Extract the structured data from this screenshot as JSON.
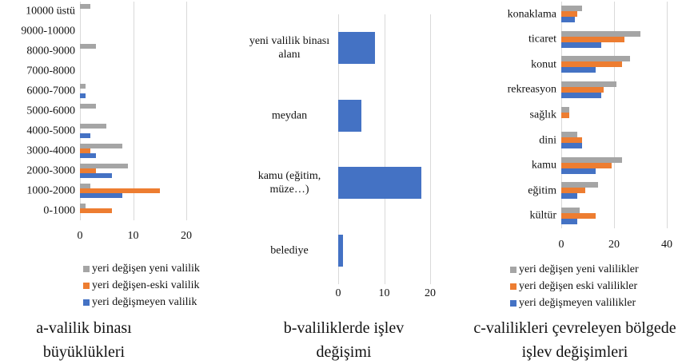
{
  "chart_data": [
    {
      "type": "bar",
      "orientation": "horizontal",
      "caption": "a-valilik binası büyüklükleri",
      "categories": [
        "10000 üstü",
        "9000-10000",
        "8000-9000",
        "7000-8000",
        "6000-7000",
        "5000-6000",
        "4000-5000",
        "3000-4000",
        "2000-3000",
        "1000-2000",
        "0-1000"
      ],
      "series": [
        {
          "name": "yeri değişen yeni valilik",
          "color": "#a5a5a5",
          "values": [
            2,
            0,
            3,
            0,
            1,
            3,
            5,
            8,
            9,
            2,
            1
          ]
        },
        {
          "name": "yeri değişen-eski valilik",
          "color": "#ed7d31",
          "values": [
            0,
            0,
            0,
            0,
            0,
            0,
            0,
            2,
            3,
            15,
            6
          ]
        },
        {
          "name": "yeri değişmeyen valilik",
          "color": "#4472c4",
          "values": [
            0,
            0,
            0,
            0,
            1,
            0,
            2,
            3,
            6,
            8,
            0
          ]
        }
      ],
      "xlim": [
        0,
        20
      ],
      "xticks": [
        0,
        10,
        20
      ],
      "grid": true
    },
    {
      "type": "bar",
      "orientation": "horizontal",
      "caption": "b-valiliklerde işlev değişimi",
      "categories": [
        "yeni valilik binası alanı",
        "meydan",
        "kamu (eğitim, müze…)",
        "belediye"
      ],
      "values": [
        8,
        5,
        18,
        1
      ],
      "color": "#4472c4",
      "xlim": [
        0,
        20
      ],
      "xticks": [
        0,
        10,
        20
      ],
      "grid": true
    },
    {
      "type": "bar",
      "orientation": "horizontal",
      "caption": "c-valilikleri çevreleyen bölgede işlev değişimleri",
      "categories": [
        "konaklama",
        "ticaret",
        "konut",
        "rekreasyon",
        "sağlık",
        "dini",
        "kamu",
        "eğitim",
        "kültür"
      ],
      "series": [
        {
          "name": "yeri değişen yeni valilikler",
          "color": "#a5a5a5",
          "values": [
            8,
            30,
            26,
            21,
            3,
            6,
            23,
            14,
            7
          ]
        },
        {
          "name": "yeri değişen eski valilikler",
          "color": "#ed7d31",
          "values": [
            6,
            24,
            23,
            16,
            3,
            8,
            19,
            9,
            13
          ]
        },
        {
          "name": "yeri değişmeyen valilikler",
          "color": "#4472c4",
          "values": [
            5,
            15,
            13,
            15,
            0,
            8,
            13,
            6,
            6
          ]
        }
      ],
      "xlim": [
        0,
        40
      ],
      "xticks": [
        0,
        20,
        40
      ],
      "grid": true
    }
  ]
}
